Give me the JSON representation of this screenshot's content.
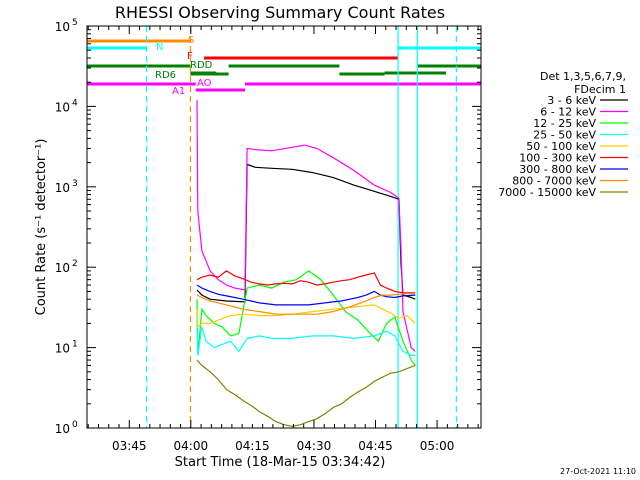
{
  "chart_data": {
    "type": "line",
    "title": "RHESSI Observing Summary Count Rates",
    "xlabel": "Start Time (18-Mar-15 03:34:42)",
    "ylabel": "Count Rate (s⁻¹ detector⁻¹)",
    "x_unit": "minutes after 03:34:42 UT",
    "xlim": [
      0,
      96
    ],
    "ylim": [
      1,
      100000
    ],
    "yscale": "log",
    "x_ticks": [
      {
        "x": 10.3,
        "label": "03:45"
      },
      {
        "x": 25.3,
        "label": "04:00"
      },
      {
        "x": 40.3,
        "label": "04:15"
      },
      {
        "x": 55.3,
        "label": "04:30"
      },
      {
        "x": 70.3,
        "label": "04:45"
      },
      {
        "x": 85.3,
        "label": "05:00"
      }
    ],
    "y_ticks": [
      {
        "v": 1,
        "base": "10",
        "exp": "0"
      },
      {
        "v": 10,
        "base": "10",
        "exp": "1"
      },
      {
        "v": 100,
        "base": "10",
        "exp": "2"
      },
      {
        "v": 1000,
        "base": "10",
        "exp": "3"
      },
      {
        "v": 10000,
        "base": "10",
        "exp": "4"
      },
      {
        "v": 100000,
        "base": "10",
        "exp": "5"
      }
    ],
    "legend": {
      "placement": "right",
      "header": [
        "Det 1,3,5,6,7,9,",
        "FDecim 1"
      ]
    },
    "series": [
      {
        "name": "3 - 6 keV",
        "color": "#000000",
        "points": [
          [
            26.8,
            52
          ],
          [
            28,
            45
          ],
          [
            30,
            40
          ],
          [
            34,
            38
          ],
          [
            38.5,
            37
          ],
          [
            39,
            1900
          ],
          [
            41,
            1750
          ],
          [
            45,
            1700
          ],
          [
            50,
            1650
          ],
          [
            55,
            1500
          ],
          [
            60,
            1300
          ],
          [
            65,
            1050
          ],
          [
            70,
            880
          ],
          [
            74,
            760
          ],
          [
            76,
            700
          ],
          [
            76.5,
            110
          ],
          [
            77,
            45
          ],
          [
            79,
            42
          ],
          [
            80,
            40
          ]
        ]
      },
      {
        "name": "6 - 12 keV",
        "color": "#ff00ff",
        "points": [
          [
            26.8,
            12000
          ],
          [
            27,
            500
          ],
          [
            28,
            160
          ],
          [
            29,
            120
          ],
          [
            30,
            90
          ],
          [
            32,
            70
          ],
          [
            34,
            60
          ],
          [
            36,
            55
          ],
          [
            38.5,
            52
          ],
          [
            39,
            3000
          ],
          [
            41,
            2900
          ],
          [
            45,
            2800
          ],
          [
            50,
            3100
          ],
          [
            53,
            3300
          ],
          [
            56,
            3000
          ],
          [
            60,
            2300
          ],
          [
            65,
            1600
          ],
          [
            70,
            1050
          ],
          [
            74,
            850
          ],
          [
            76,
            720
          ],
          [
            76.5,
            170
          ],
          [
            77,
            28
          ],
          [
            79,
            10
          ],
          [
            80,
            9
          ]
        ]
      },
      {
        "name": "12 - 25 keV",
        "color": "#00ff00",
        "points": [
          [
            26.8,
            40
          ],
          [
            27,
            8
          ],
          [
            28,
            30
          ],
          [
            29,
            25
          ],
          [
            31,
            20
          ],
          [
            33,
            18
          ],
          [
            35,
            14
          ],
          [
            37,
            15
          ],
          [
            39,
            55
          ],
          [
            42,
            60
          ],
          [
            45,
            55
          ],
          [
            48,
            65
          ],
          [
            51,
            70
          ],
          [
            54,
            90
          ],
          [
            57,
            70
          ],
          [
            60,
            45
          ],
          [
            63,
            28
          ],
          [
            66,
            22
          ],
          [
            69,
            15
          ],
          [
            71,
            12
          ],
          [
            73,
            20
          ],
          [
            75,
            24
          ],
          [
            77,
            12
          ],
          [
            79,
            7
          ],
          [
            80,
            6
          ]
        ]
      },
      {
        "name": "25 - 50 keV",
        "color": "#00ffff",
        "points": [
          [
            26.8,
            25
          ],
          [
            27,
            8
          ],
          [
            28,
            18
          ],
          [
            29,
            12
          ],
          [
            31,
            10
          ],
          [
            33,
            11
          ],
          [
            35,
            12
          ],
          [
            37,
            9
          ],
          [
            39,
            13
          ],
          [
            42,
            14
          ],
          [
            45,
            13
          ],
          [
            50,
            13
          ],
          [
            55,
            14
          ],
          [
            60,
            14
          ],
          [
            65,
            13
          ],
          [
            70,
            14
          ],
          [
            73,
            16
          ],
          [
            75,
            14
          ],
          [
            77,
            9
          ],
          [
            79,
            8
          ],
          [
            80,
            8
          ]
        ]
      },
      {
        "name": "50 - 100 keV",
        "color": "#ffcc00",
        "points": [
          [
            26.8,
            30
          ],
          [
            27,
            18
          ],
          [
            28,
            20
          ],
          [
            30,
            20
          ],
          [
            32,
            22
          ],
          [
            35,
            25
          ],
          [
            38,
            26
          ],
          [
            42,
            25
          ],
          [
            46,
            25
          ],
          [
            50,
            26
          ],
          [
            55,
            28
          ],
          [
            60,
            30
          ],
          [
            65,
            32
          ],
          [
            70,
            34
          ],
          [
            72,
            30
          ],
          [
            74,
            27
          ],
          [
            76,
            23
          ],
          [
            78,
            25
          ],
          [
            80,
            20
          ]
        ]
      },
      {
        "name": "100 - 300 keV",
        "color": "#ff0000",
        "points": [
          [
            26.8,
            70
          ],
          [
            28,
            75
          ],
          [
            30,
            80
          ],
          [
            32,
            75
          ],
          [
            34,
            90
          ],
          [
            36,
            78
          ],
          [
            38,
            72
          ],
          [
            40,
            65
          ],
          [
            42,
            62
          ],
          [
            44,
            60
          ],
          [
            46,
            62
          ],
          [
            48,
            63
          ],
          [
            50,
            62
          ],
          [
            52,
            68
          ],
          [
            54,
            65
          ],
          [
            56,
            60
          ],
          [
            58,
            62
          ],
          [
            60,
            65
          ],
          [
            62,
            68
          ],
          [
            64,
            70
          ],
          [
            66,
            75
          ],
          [
            68,
            80
          ],
          [
            70,
            85
          ],
          [
            71.5,
            60
          ],
          [
            73,
            55
          ],
          [
            75,
            50
          ],
          [
            77,
            48
          ],
          [
            80,
            48
          ]
        ]
      },
      {
        "name": "300 - 800 keV",
        "color": "#0000ff",
        "points": [
          [
            26.8,
            60
          ],
          [
            28,
            55
          ],
          [
            30,
            50
          ],
          [
            32,
            46
          ],
          [
            34,
            44
          ],
          [
            36,
            42
          ],
          [
            38,
            40
          ],
          [
            40,
            38
          ],
          [
            42,
            36
          ],
          [
            44,
            35
          ],
          [
            46,
            34
          ],
          [
            48,
            34
          ],
          [
            50,
            34
          ],
          [
            52,
            34
          ],
          [
            54,
            34
          ],
          [
            56,
            35
          ],
          [
            58,
            36
          ],
          [
            60,
            37
          ],
          [
            62,
            38
          ],
          [
            64,
            40
          ],
          [
            66,
            42
          ],
          [
            68,
            45
          ],
          [
            70,
            50
          ],
          [
            71.5,
            45
          ],
          [
            73,
            43
          ],
          [
            75,
            42
          ],
          [
            77,
            44
          ],
          [
            80,
            45
          ]
        ]
      },
      {
        "name": "800 - 7000 keV",
        "color": "#ff8c00",
        "points": [
          [
            26.8,
            45
          ],
          [
            28,
            42
          ],
          [
            30,
            38
          ],
          [
            32,
            36
          ],
          [
            34,
            34
          ],
          [
            36,
            32
          ],
          [
            38,
            30
          ],
          [
            40,
            29
          ],
          [
            42,
            28
          ],
          [
            44,
            27
          ],
          [
            46,
            26
          ],
          [
            48,
            26
          ],
          [
            50,
            26
          ],
          [
            52,
            26
          ],
          [
            54,
            26
          ],
          [
            56,
            26
          ],
          [
            58,
            27
          ],
          [
            60,
            28
          ],
          [
            62,
            30
          ],
          [
            64,
            32
          ],
          [
            66,
            35
          ],
          [
            68,
            38
          ],
          [
            70,
            42
          ],
          [
            72,
            45
          ],
          [
            74,
            45
          ],
          [
            76,
            46
          ],
          [
            78,
            47
          ],
          [
            80,
            47
          ]
        ]
      },
      {
        "name": "7000 - 15000 keV",
        "color": "#808000",
        "points": [
          [
            26.8,
            7
          ],
          [
            28,
            6
          ],
          [
            30,
            5
          ],
          [
            32,
            4
          ],
          [
            34,
            3
          ],
          [
            36,
            2.6
          ],
          [
            38,
            2.2
          ],
          [
            40,
            1.9
          ],
          [
            42,
            1.6
          ],
          [
            44,
            1.4
          ],
          [
            46,
            1.2
          ],
          [
            48,
            1.1
          ],
          [
            50,
            1.05
          ],
          [
            52,
            1.1
          ],
          [
            54,
            1.2
          ],
          [
            56,
            1.3
          ],
          [
            58,
            1.5
          ],
          [
            60,
            1.8
          ],
          [
            62,
            2
          ],
          [
            64,
            2.4
          ],
          [
            66,
            2.8
          ],
          [
            68,
            3.2
          ],
          [
            70,
            3.8
          ],
          [
            72,
            4.3
          ],
          [
            74,
            4.8
          ],
          [
            76,
            5
          ],
          [
            78,
            5.5
          ],
          [
            80,
            6
          ]
        ]
      }
    ],
    "vlines": [
      {
        "x": 14.5,
        "color": "#00ffff",
        "dash": true
      },
      {
        "x": 25.2,
        "color": "#ff8c00",
        "dash": true
      },
      {
        "x": 75.8,
        "color": "#00ffff",
        "dash": false
      },
      {
        "x": 80.5,
        "color": "#00ffff",
        "dash": false
      },
      {
        "x": 90.0,
        "color": "#00ffff",
        "dash": true
      }
    ],
    "flags": [
      {
        "label": "S",
        "color": "#ff8c00",
        "segments": [
          [
            0,
            25.2
          ]
        ],
        "y": 100000
      },
      {
        "label": "N",
        "color": "#00ffff",
        "segments": [
          [
            0,
            14.5
          ],
          [
            75.8,
            96
          ]
        ],
        "y": 100000
      },
      {
        "label": "F",
        "color": "#ff0000",
        "segments": [
          [
            28.5,
            75.8
          ]
        ],
        "y": 100000
      },
      {
        "label": "RDD",
        "color": "#008000",
        "segments": [
          [
            0,
            25.2
          ],
          [
            25.2,
            34.5
          ],
          [
            34.5,
            61.5
          ],
          [
            61.5,
            72.5
          ],
          [
            80.5,
            96
          ]
        ],
        "y": 100000
      },
      {
        "label": "RD6",
        "color": "#008000",
        "segments": [
          [
            25.2,
            31.5
          ],
          [
            72.5,
            87.5
          ]
        ],
        "y": 100000
      },
      {
        "label": "A1",
        "color": "#ff00ff",
        "segments": [
          [
            0,
            26.5
          ],
          [
            26.5,
            38.5
          ],
          [
            38.5,
            96
          ]
        ],
        "y": 100000
      },
      {
        "label": "AO",
        "color": "#ff00ff",
        "segments": [
          [
            26.5,
            38.5
          ]
        ],
        "y": 100000
      }
    ],
    "timestamp": "27-Oct-2021 11:10"
  }
}
